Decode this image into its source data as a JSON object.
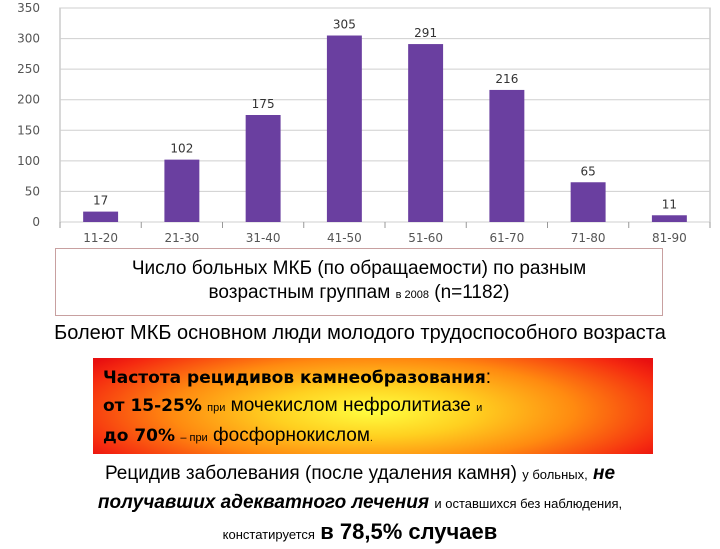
{
  "chart_data": {
    "type": "bar",
    "categories": [
      "11-20",
      "21-30",
      "31-40",
      "41-50",
      "51-60",
      "61-70",
      "71-80",
      "81-90"
    ],
    "values": [
      17,
      102,
      175,
      305,
      291,
      216,
      65,
      11
    ],
    "ylim": [
      0,
      350
    ],
    "yticks": [
      0,
      50,
      100,
      150,
      200,
      250,
      300,
      350
    ],
    "grid": true,
    "bar_color": "#6a3fa0"
  },
  "caption": {
    "line1": "Число больных МКБ (по обращаемости) по разным",
    "line2_a": "возрастным группам",
    "line2_small": "в 2008",
    "line2_b": "(n=1182)"
  },
  "main_note": "Болеют МКБ основном люди молодого трудоспособного возраста",
  "relapse": {
    "l1_bold": "Частота рецидивов камнеобразования",
    "l1_end": ":",
    "l2_bold": "от 15-25%",
    "l2_small1": "при",
    "l2_text": "мочекислом нефролитиазе",
    "l2_small2": "и",
    "l3_bold": "до 70%",
    "l3_small": "– при",
    "l3_text": "фосфорнокислом",
    "l3_end": "."
  },
  "footer": {
    "l1_a": "Рецидив заболевания (после удаления камня)",
    "l1_small": "у больных,",
    "l1_bi": "не",
    "l2_bi": "получавших адекватного лечения",
    "l2_small": "и оставшихся без наблюдения,",
    "l3_small": "констатируется",
    "l3_big": "в 78,5% случаев"
  }
}
